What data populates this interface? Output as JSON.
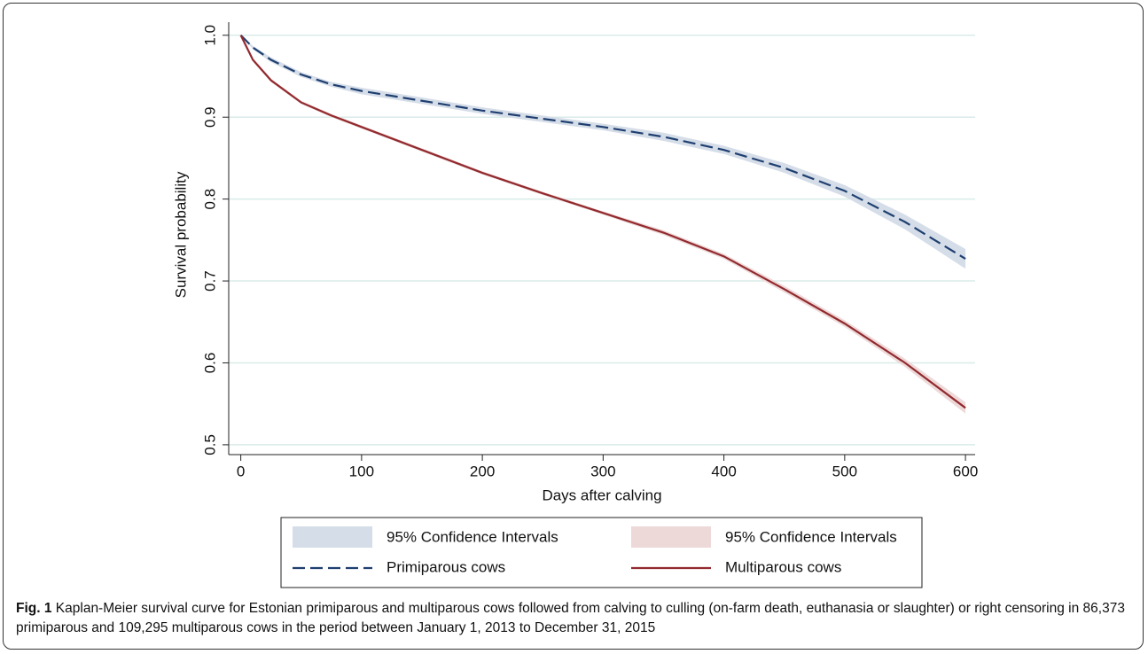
{
  "chart_data": {
    "type": "line",
    "y_label": "Survival probability",
    "x_label": "Days after calving",
    "x": [
      0,
      10,
      25,
      50,
      75,
      100,
      150,
      200,
      250,
      300,
      350,
      400,
      450,
      500,
      550,
      600
    ],
    "xlim": [
      -10,
      608
    ],
    "xticks": [
      0,
      100,
      200,
      300,
      400,
      500,
      600
    ],
    "ylim": [
      0.488,
      1.016
    ],
    "yticks": [
      0.5,
      0.6,
      0.7,
      0.8,
      0.9,
      {
        "value": 1,
        "label": "1.0"
      }
    ],
    "grid": true,
    "legend": "bottom",
    "series": [
      {
        "name": "Primiparous cows",
        "color": "#1f3f70",
        "dash": true,
        "ci_name": "95% Confidence Intervals",
        "ci_color": "#d5dde8",
        "values": [
          1.0,
          0.985,
          0.97,
          0.952,
          0.94,
          0.932,
          0.92,
          0.908,
          0.898,
          0.888,
          0.876,
          0.86,
          0.838,
          0.81,
          0.772,
          0.727
        ],
        "lower": [
          1.0,
          0.983,
          0.967,
          0.949,
          0.937,
          0.928,
          0.916,
          0.904,
          0.894,
          0.884,
          0.871,
          0.855,
          0.832,
          0.803,
          0.763,
          0.715
        ],
        "upper": [
          1.0,
          0.987,
          0.973,
          0.955,
          0.943,
          0.936,
          0.924,
          0.912,
          0.902,
          0.892,
          0.881,
          0.865,
          0.844,
          0.817,
          0.781,
          0.739
        ]
      },
      {
        "name": "Multiparous cows",
        "color": "#922a2e",
        "dash": false,
        "ci_name": "95% Confidence Intervals",
        "ci_color": "#eed9d9",
        "values": [
          1.0,
          0.97,
          0.945,
          0.918,
          0.902,
          0.888,
          0.86,
          0.832,
          0.807,
          0.783,
          0.759,
          0.73,
          0.69,
          0.648,
          0.6,
          0.545
        ],
        "lower": [
          1.0,
          0.968,
          0.943,
          0.916,
          0.9,
          0.886,
          0.858,
          0.83,
          0.805,
          0.781,
          0.756,
          0.727,
          0.686,
          0.644,
          0.595,
          0.538
        ],
        "upper": [
          1.0,
          0.972,
          0.947,
          0.92,
          0.904,
          0.89,
          0.862,
          0.834,
          0.809,
          0.785,
          0.762,
          0.733,
          0.694,
          0.652,
          0.605,
          0.552
        ]
      }
    ]
  },
  "caption": {
    "label": "Fig. 1",
    "text": "Kaplan-Meier survival curve for Estonian primiparous and multiparous cows followed from calving to culling (on-farm death, euthanasia or slaughter) or right censoring in 86,373 primiparous and 109,295 multiparous cows in the period between January 1, 2013 to December 31, 2015"
  }
}
